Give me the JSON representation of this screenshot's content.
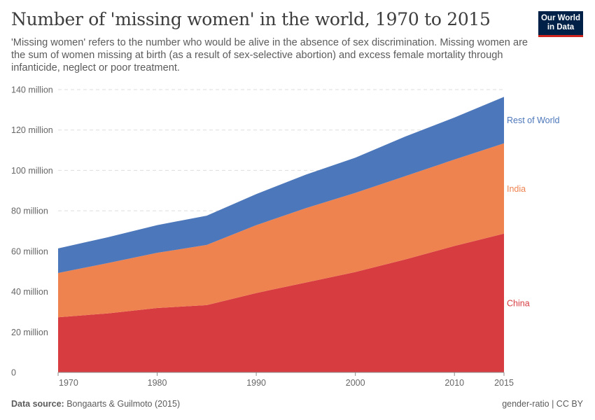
{
  "header": {
    "title": "Number of 'missing women' in the world, 1970 to 2015",
    "subtitle": "'Missing women' refers to the number who would be alive in the absence of sex discrimination. Missing women are the sum of women missing at birth (as a result of sex-selective abortion) and excess female mortality through infanticide, neglect or poor treatment."
  },
  "logo": {
    "line1": "Our World",
    "line2": "in Data",
    "bg_color": "#002147",
    "accent_color": "#ce261e"
  },
  "footer": {
    "source_label": "Data source:",
    "source_text": "Bongaarts & Guilmoto (2015)",
    "right_text": "gender-ratio | CC BY"
  },
  "chart_data": {
    "type": "area",
    "stacked": true,
    "x": [
      1970,
      1975,
      1980,
      1985,
      1990,
      1995,
      2000,
      2005,
      2010,
      2015
    ],
    "x_ticks": [
      1970,
      1980,
      1990,
      2000,
      2010,
      2015
    ],
    "xlim": [
      1970,
      2015
    ],
    "ylim": [
      0,
      140000000
    ],
    "y_ticks": [
      0,
      20000000,
      40000000,
      60000000,
      80000000,
      100000000,
      120000000,
      140000000
    ],
    "y_tick_labels": [
      "0",
      "20 million",
      "40 million",
      "60 million",
      "80 million",
      "100 million",
      "120 million",
      "140 million"
    ],
    "grid": "horizontal dashed",
    "legend_placement": "right, inline labels",
    "series": [
      {
        "name": "China",
        "color": "#d73c41",
        "values": [
          27300000,
          29200000,
          31900000,
          33300000,
          39300000,
          44500000,
          49700000,
          55900000,
          62600000,
          68700000
        ]
      },
      {
        "name": "India",
        "color": "#ef8350",
        "values": [
          21900000,
          24900000,
          27300000,
          29800000,
          33600000,
          36800000,
          39200000,
          41200000,
          42800000,
          44700000
        ]
      },
      {
        "name": "Rest of World",
        "color": "#4c77ba",
        "values": [
          12200000,
          12800000,
          13700000,
          14500000,
          15400000,
          16600000,
          17400000,
          19600000,
          20800000,
          23000000
        ]
      }
    ]
  }
}
